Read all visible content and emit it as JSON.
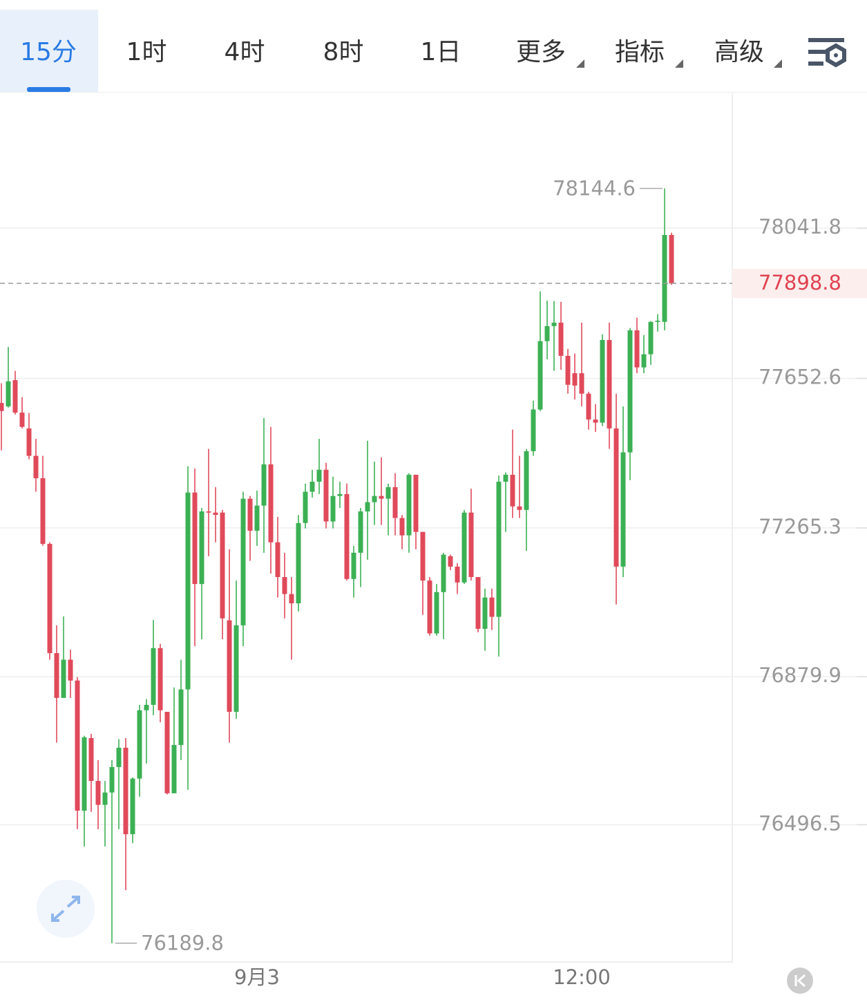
{
  "tabs": [
    "15分",
    "1时",
    "4时",
    "8时",
    "1日",
    "更多",
    "指标",
    "高级"
  ],
  "chart_data": {
    "type": "candlestick",
    "categories": [
      null,
      null,
      null,
      null,
      null,
      null,
      null,
      null,
      null,
      null,
      null,
      null,
      null,
      null,
      null,
      null,
      null,
      null,
      null,
      null,
      null,
      null,
      null,
      null,
      null,
      null,
      null,
      null,
      null,
      null,
      null,
      null,
      null,
      null,
      null,
      null,
      null,
      "9月3",
      null,
      null,
      null,
      null,
      null,
      null,
      null,
      null,
      null,
      null,
      null,
      null,
      null,
      null,
      null,
      null,
      null,
      null,
      null,
      null,
      null,
      null,
      null,
      null,
      null,
      null,
      null,
      null,
      null,
      null,
      null,
      null,
      null,
      null,
      null,
      null,
      null,
      null,
      null,
      null,
      null,
      null,
      null,
      null,
      null,
      null,
      "12:00",
      null,
      null,
      null,
      null,
      null,
      null,
      null,
      null,
      null,
      null,
      null,
      null,
      null
    ],
    "open": [
      77589,
      77580,
      77648,
      77564,
      77523,
      77452,
      77394,
      77224,
      76941,
      76825,
      76924,
      76870,
      76533,
      76721,
      76610,
      76548,
      76580,
      76646,
      76696,
      76472,
      76616,
      76793,
      76807,
      76954,
      76789,
      76578,
      76703,
      76847,
      77357,
      77120,
      77308,
      77305,
      77305,
      77026,
      76789,
      77013,
      77341,
      77258,
      77323,
      77430,
      77228,
      77138,
      77094,
      77070,
      77278,
      77359,
      77385,
      77416,
      77282,
      77348,
      77353,
      77133,
      77201,
      77308,
      77332,
      77348,
      77341,
      77371,
      77291,
      77246,
      77403,
      77255,
      77129,
      76992,
      77099,
      77192,
      77165,
      77124,
      77305,
      77138,
      77004,
      77085,
      77035,
      77385,
      77403,
      77321,
      77312,
      77464,
      77572,
      77749,
      77788,
      77797,
      77711,
      77666,
      77666,
      77613,
      77546,
      77538,
      77752,
      77523,
      77165,
      77461,
      77777,
      77681,
      77715,
      77799,
      77799,
      78024
    ],
    "high": [
      77640,
      77734,
      77672,
      77604,
      77563,
      77496,
      77452,
      77228,
      77013,
      77036,
      76950,
      76879,
      76727,
      76732,
      76664,
      76610,
      76664,
      76718,
      76721,
      76619,
      76807,
      76822,
      77027,
      76965,
      76789,
      76852,
      76924,
      77425,
      77419,
      77317,
      77470,
      77371,
      77312,
      77210,
      77129,
      77359,
      77348,
      77362,
      77550,
      77527,
      77294,
      77201,
      77138,
      77299,
      77380,
      77416,
      77496,
      77434,
      77398,
      77385,
      77380,
      77219,
      77317,
      77491,
      77437,
      77448,
      77380,
      77407,
      77299,
      77407,
      77403,
      77255,
      77138,
      77120,
      77201,
      77196,
      77174,
      77312,
      77367,
      77138,
      77108,
      77108,
      77401,
      77409,
      77520,
      77452,
      77470,
      77595,
      77878,
      77854,
      77853,
      77851,
      77729,
      77717,
      77797,
      77618,
      77586,
      77767,
      77797,
      77613,
      77580,
      77783,
      77810,
      77765,
      77801,
      77819,
      78144.6,
      78030
    ],
    "low": [
      77466,
      77577,
      77559,
      77523,
      77443,
      77359,
      77219,
      76924,
      76709,
      76825,
      76825,
      76485,
      76440,
      76530,
      76485,
      76440,
      76189.8,
      76485,
      76327,
      76449,
      76569,
      76655,
      76780,
      76762,
      76575,
      76578,
      76664,
      76587,
      76959,
      76977,
      77192,
      77228,
      76977,
      76709,
      76771,
      76959,
      77180,
      77219,
      77201,
      77147,
      77085,
      77031,
      76924,
      77049,
      77264,
      77344,
      77353,
      77264,
      77264,
      77317,
      77129,
      77085,
      77112,
      77183,
      77273,
      77273,
      77246,
      77246,
      77210,
      77201,
      77210,
      77040,
      76986,
      76986,
      76977,
      77156,
      77094,
      77120,
      77129,
      76995,
      76947,
      77001,
      76932,
      77255,
      77291,
      77291,
      77206,
      77452,
      77568,
      77702,
      77672,
      77675,
      77613,
      77598,
      77580,
      77520,
      77514,
      77529,
      77470,
      77067,
      77138,
      77389,
      77666,
      77666,
      77688,
      77774,
      77777,
      77895
    ],
    "close": [
      77568,
      77645,
      77564,
      77527,
      77452,
      77394,
      77224,
      76941,
      76825,
      76924,
      76870,
      76533,
      76723,
      76610,
      76548,
      76580,
      76646,
      76696,
      76472,
      76616,
      76793,
      76807,
      76954,
      76793,
      76578,
      76703,
      76847,
      77357,
      77120,
      77308,
      77305,
      77299,
      77031,
      76789,
      77013,
      77341,
      77258,
      77323,
      77430,
      77228,
      77138,
      77094,
      77070,
      77278,
      77359,
      77385,
      77416,
      77282,
      77348,
      77353,
      77133,
      77201,
      77308,
      77332,
      77348,
      77341,
      77371,
      77291,
      77246,
      77403,
      77255,
      77129,
      76992,
      77099,
      77196,
      77165,
      77124,
      77305,
      77138,
      77004,
      77085,
      77035,
      77385,
      77403,
      77321,
      77312,
      77464,
      77572,
      77749,
      77788,
      77797,
      77711,
      77636,
      77634,
      77613,
      77546,
      77538,
      77752,
      77523,
      77165,
      77461,
      77777,
      77681,
      77715,
      77799,
      77802,
      78024,
      77898.8
    ],
    "ylim": [
      76141,
      78391
    ],
    "yticks": [
      76496.5,
      76879.9,
      77265.3,
      77652.6,
      78041.8
    ],
    "grid": true,
    "up_color": "#3cb054",
    "down_color": "#e04a5a"
  }
}
